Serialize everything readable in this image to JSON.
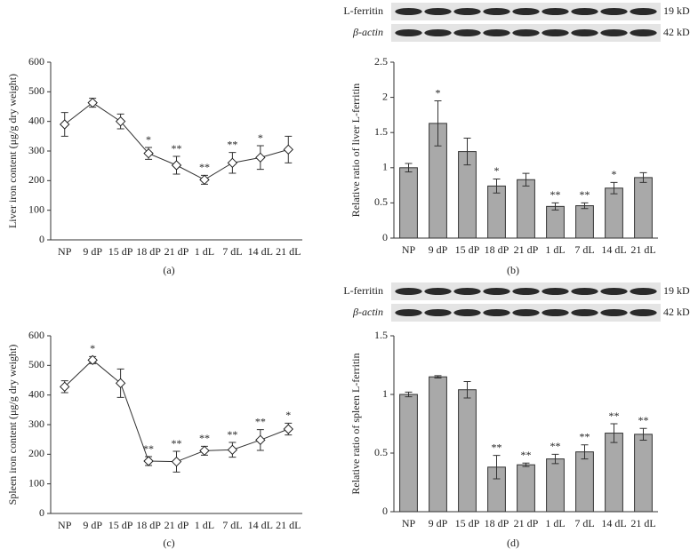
{
  "chart_data": [
    {
      "type": "line",
      "y_label": "Liver iron content (μg/g dry weight)",
      "panel_label": "(a)",
      "categories": [
        "NP",
        "9 dP",
        "15 dP",
        "18 dP",
        "21 dP",
        "1 dL",
        "7 dL",
        "14 dL",
        "21 dL"
      ],
      "values": [
        390,
        463,
        400,
        292,
        252,
        203,
        260,
        278,
        305
      ],
      "errors": [
        40,
        15,
        25,
        20,
        30,
        15,
        35,
        40,
        45
      ],
      "annotations": [
        null,
        null,
        null,
        "*",
        "**",
        "**",
        "**",
        "*",
        null
      ],
      "ylim": [
        0,
        600
      ],
      "yticks": [
        0,
        100,
        200,
        300,
        400,
        500,
        600
      ]
    },
    {
      "type": "bar",
      "y_label": "Relative ratio of liver L-ferritin",
      "panel_label": "(b)",
      "blot": [
        {
          "label": "L-ferritin",
          "size": "19 kD"
        },
        {
          "label": "β-actin",
          "size": "42 kD"
        }
      ],
      "categories": [
        "NP",
        "9 dP",
        "15 dP",
        "18 dP",
        "21 dP",
        "1 dL",
        "7 dL",
        "14 dL",
        "21 dL"
      ],
      "values": [
        1.0,
        1.63,
        1.23,
        0.74,
        0.83,
        0.45,
        0.46,
        0.71,
        0.86
      ],
      "errors": [
        0.06,
        0.32,
        0.19,
        0.1,
        0.09,
        0.05,
        0.04,
        0.08,
        0.07
      ],
      "annotations": [
        null,
        "*",
        null,
        "*",
        null,
        "**",
        "**",
        "*",
        null
      ],
      "color": "#a9a9a9",
      "ylim": [
        0,
        2.5
      ],
      "yticks": [
        0,
        0.5,
        1,
        1.5,
        2,
        2.5
      ]
    },
    {
      "type": "line",
      "y_label": "Spleen iron content (μg/g dry weight)",
      "panel_label": "(c)",
      "categories": [
        "NP",
        "9 dP",
        "15 dP",
        "18 dP",
        "21 dP",
        "1 dL",
        "7 dL",
        "14 dL",
        "21 dL"
      ],
      "values": [
        428,
        518,
        440,
        177,
        175,
        212,
        215,
        248,
        285
      ],
      "errors": [
        20,
        12,
        48,
        15,
        35,
        15,
        25,
        35,
        20
      ],
      "annotations": [
        null,
        "*",
        null,
        "**",
        "**",
        "**",
        "**",
        "**",
        "*"
      ],
      "ylim": [
        0,
        600
      ],
      "yticks": [
        0,
        100,
        200,
        300,
        400,
        500,
        600
      ]
    },
    {
      "type": "bar",
      "y_label": "Relative ratio of spleen L-ferritin",
      "panel_label": "(d)",
      "blot": [
        {
          "label": "L-ferritin",
          "size": "19 kD"
        },
        {
          "label": "β-actin",
          "size": "42 kD"
        }
      ],
      "categories": [
        "NP",
        "9 dP",
        "15 dP",
        "18 dP",
        "21 dP",
        "1 dL",
        "7 dL",
        "14 dL",
        "21 dL"
      ],
      "values": [
        1.0,
        1.15,
        1.04,
        0.38,
        0.4,
        0.45,
        0.51,
        0.67,
        0.66
      ],
      "errors": [
        0.02,
        0.01,
        0.07,
        0.1,
        0.015,
        0.04,
        0.06,
        0.08,
        0.05
      ],
      "annotations": [
        null,
        null,
        null,
        "**",
        "**",
        "**",
        "**",
        "**",
        "**"
      ],
      "color": "#a9a9a9",
      "ylim": [
        0,
        1.5
      ],
      "yticks": [
        0,
        0.5,
        1,
        1.5
      ]
    }
  ]
}
